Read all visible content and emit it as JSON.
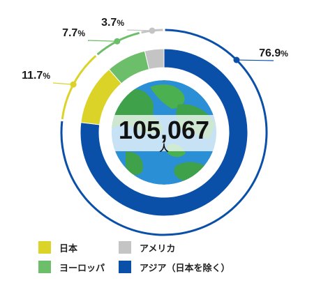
{
  "chart_data": {
    "type": "pie",
    "center_value": "105,067",
    "center_unit": "人",
    "series": [
      {
        "name": "アジア（日本を除く）",
        "value": 76.9,
        "label": "76.9",
        "unit": "%",
        "color": "#0a4fa8"
      },
      {
        "name": "日本",
        "value": 11.7,
        "label": "11.7",
        "unit": "%",
        "color": "#dbd328"
      },
      {
        "name": "ヨーロッパ",
        "value": 7.7,
        "label": "7.7",
        "unit": "%",
        "color": "#6cbe6a"
      },
      {
        "name": "アメリカ",
        "value": 3.7,
        "label": "3.7",
        "unit": "%",
        "color": "#c4c4c4"
      }
    ]
  },
  "legend": [
    {
      "label": "日本",
      "color": "#dbd328"
    },
    {
      "label": "アメリカ",
      "color": "#c4c4c4"
    },
    {
      "label": "ヨーロッパ",
      "color": "#6cbe6a"
    },
    {
      "label": "アジア（日本を除く）",
      "color": "#0a4fa8"
    }
  ]
}
